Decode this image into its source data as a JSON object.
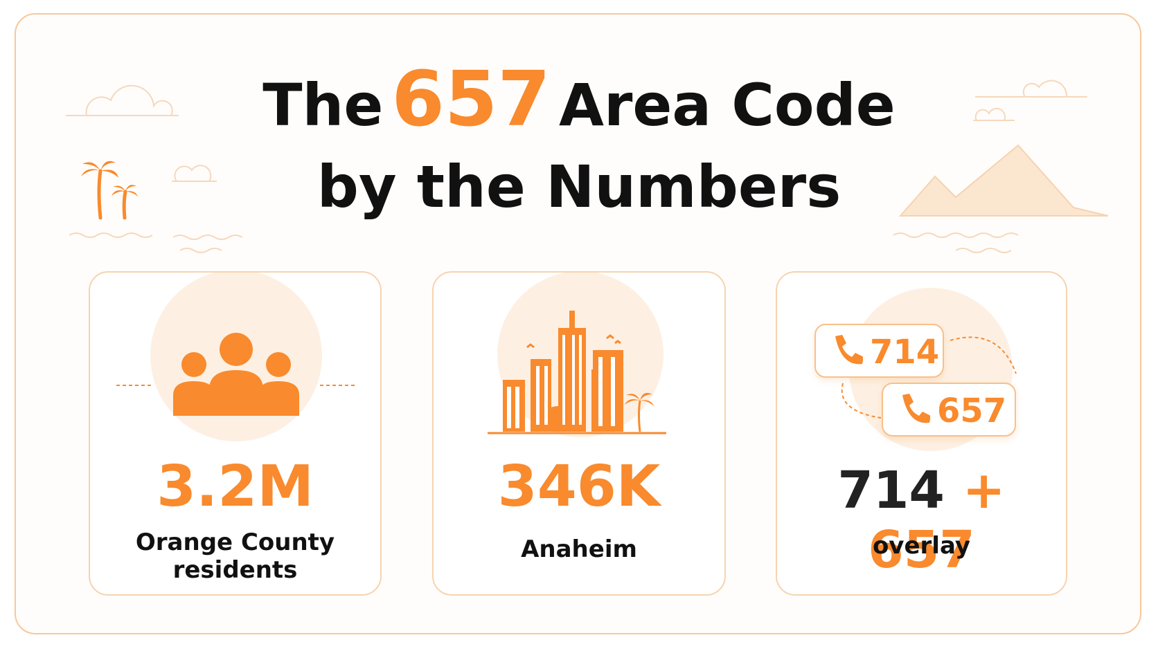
{
  "header": {
    "title_prefix": "The",
    "title_highlight": "657",
    "title_suffix": "Area Code",
    "title_line2": "by the Numbers"
  },
  "cards": [
    {
      "stat": "3.2M",
      "label": "Orange County residents"
    },
    {
      "stat": "346K",
      "label": "Anaheim"
    },
    {
      "badges": [
        "714",
        "657"
      ],
      "stat_parts": [
        "714",
        "+",
        "657"
      ],
      "label": "overlay"
    }
  ]
}
